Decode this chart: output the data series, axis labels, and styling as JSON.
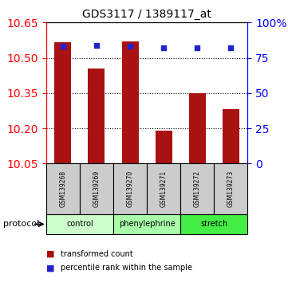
{
  "title": "GDS3117 / 1389117_at",
  "samples": [
    "GSM139268",
    "GSM139269",
    "GSM139270",
    "GSM139271",
    "GSM139272",
    "GSM139273"
  ],
  "bar_values": [
    10.565,
    10.455,
    10.57,
    10.19,
    10.35,
    10.28
  ],
  "percentile_values": [
    83,
    84,
    83,
    82,
    82,
    82
  ],
  "ylim_left": [
    10.05,
    10.65
  ],
  "ylim_right": [
    0,
    100
  ],
  "yticks_left": [
    10.05,
    10.2,
    10.35,
    10.5,
    10.65
  ],
  "yticks_right": [
    0,
    25,
    50,
    75,
    100
  ],
  "ytick_labels_right": [
    "0",
    "25",
    "50",
    "75",
    "100%"
  ],
  "bar_color": "#aa1111",
  "scatter_color": "#2222cc",
  "grid_yticks": [
    10.2,
    10.35,
    10.5
  ],
  "protocol_groups": [
    {
      "label": "control",
      "indices": [
        0,
        1
      ],
      "color": "#ccffcc"
    },
    {
      "label": "phenylephrine",
      "indices": [
        2,
        3
      ],
      "color": "#aaffaa"
    },
    {
      "label": "stretch",
      "indices": [
        4,
        5
      ],
      "color": "#44ee44"
    }
  ],
  "protocol_label": "protocol",
  "legend_items": [
    {
      "label": "transformed count",
      "color": "#aa1111"
    },
    {
      "label": "percentile rank within the sample",
      "color": "#2222cc"
    }
  ],
  "bar_width": 0.5,
  "sample_area_color": "#cccccc",
  "figsize": [
    3.61,
    3.54
  ],
  "dpi": 100
}
